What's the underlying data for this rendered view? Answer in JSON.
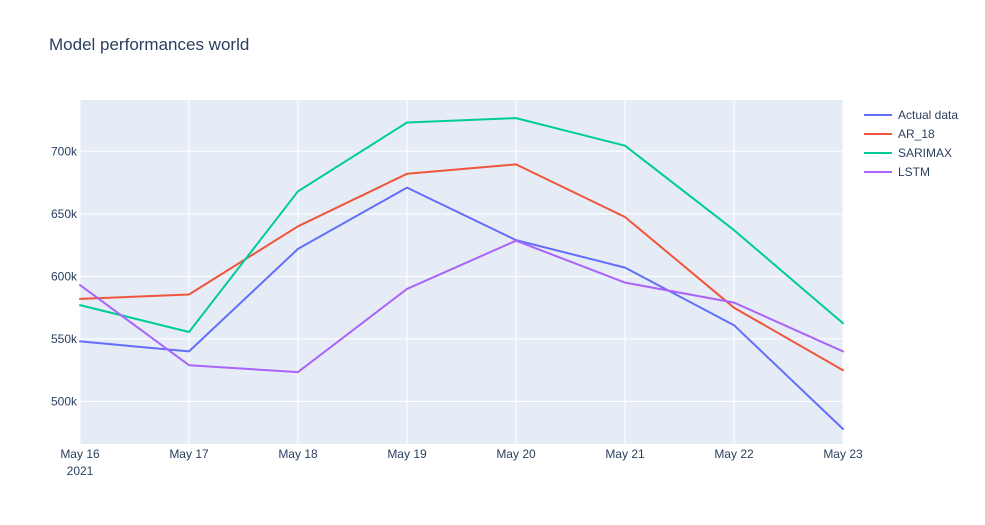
{
  "chart_data": {
    "type": "line",
    "title": "Model performances world",
    "x": [
      "May 16",
      "May 17",
      "May 18",
      "May 19",
      "May 20",
      "May 21",
      "May 22",
      "May 23"
    ],
    "x_year_label": "2021",
    "xlabel": "",
    "ylabel": "",
    "ylim": [
      466000,
      741000
    ],
    "yticks": [
      500000,
      550000,
      600000,
      650000,
      700000
    ],
    "ytick_labels": [
      "500k",
      "550k",
      "600k",
      "650k",
      "700k"
    ],
    "grid": true,
    "legend_position": "top-right",
    "series": [
      {
        "name": "Actual data",
        "color": "#636efa",
        "values": [
          548000,
          540000,
          622000,
          671000,
          629000,
          607000,
          561000,
          478000
        ]
      },
      {
        "name": "AR_18",
        "color": "#ef553b",
        "values": [
          582000,
          585500,
          640000,
          682000,
          689500,
          647500,
          575000,
          525000
        ]
      },
      {
        "name": "SARIMAX",
        "color": "#00cc96",
        "values": [
          577000,
          555500,
          668000,
          723000,
          726500,
          704500,
          637000,
          562500
        ]
      },
      {
        "name": "LSTM",
        "color": "#ab63fa",
        "values": [
          593000,
          529000,
          523500,
          590000,
          628500,
          595000,
          579000,
          540000
        ]
      }
    ]
  }
}
